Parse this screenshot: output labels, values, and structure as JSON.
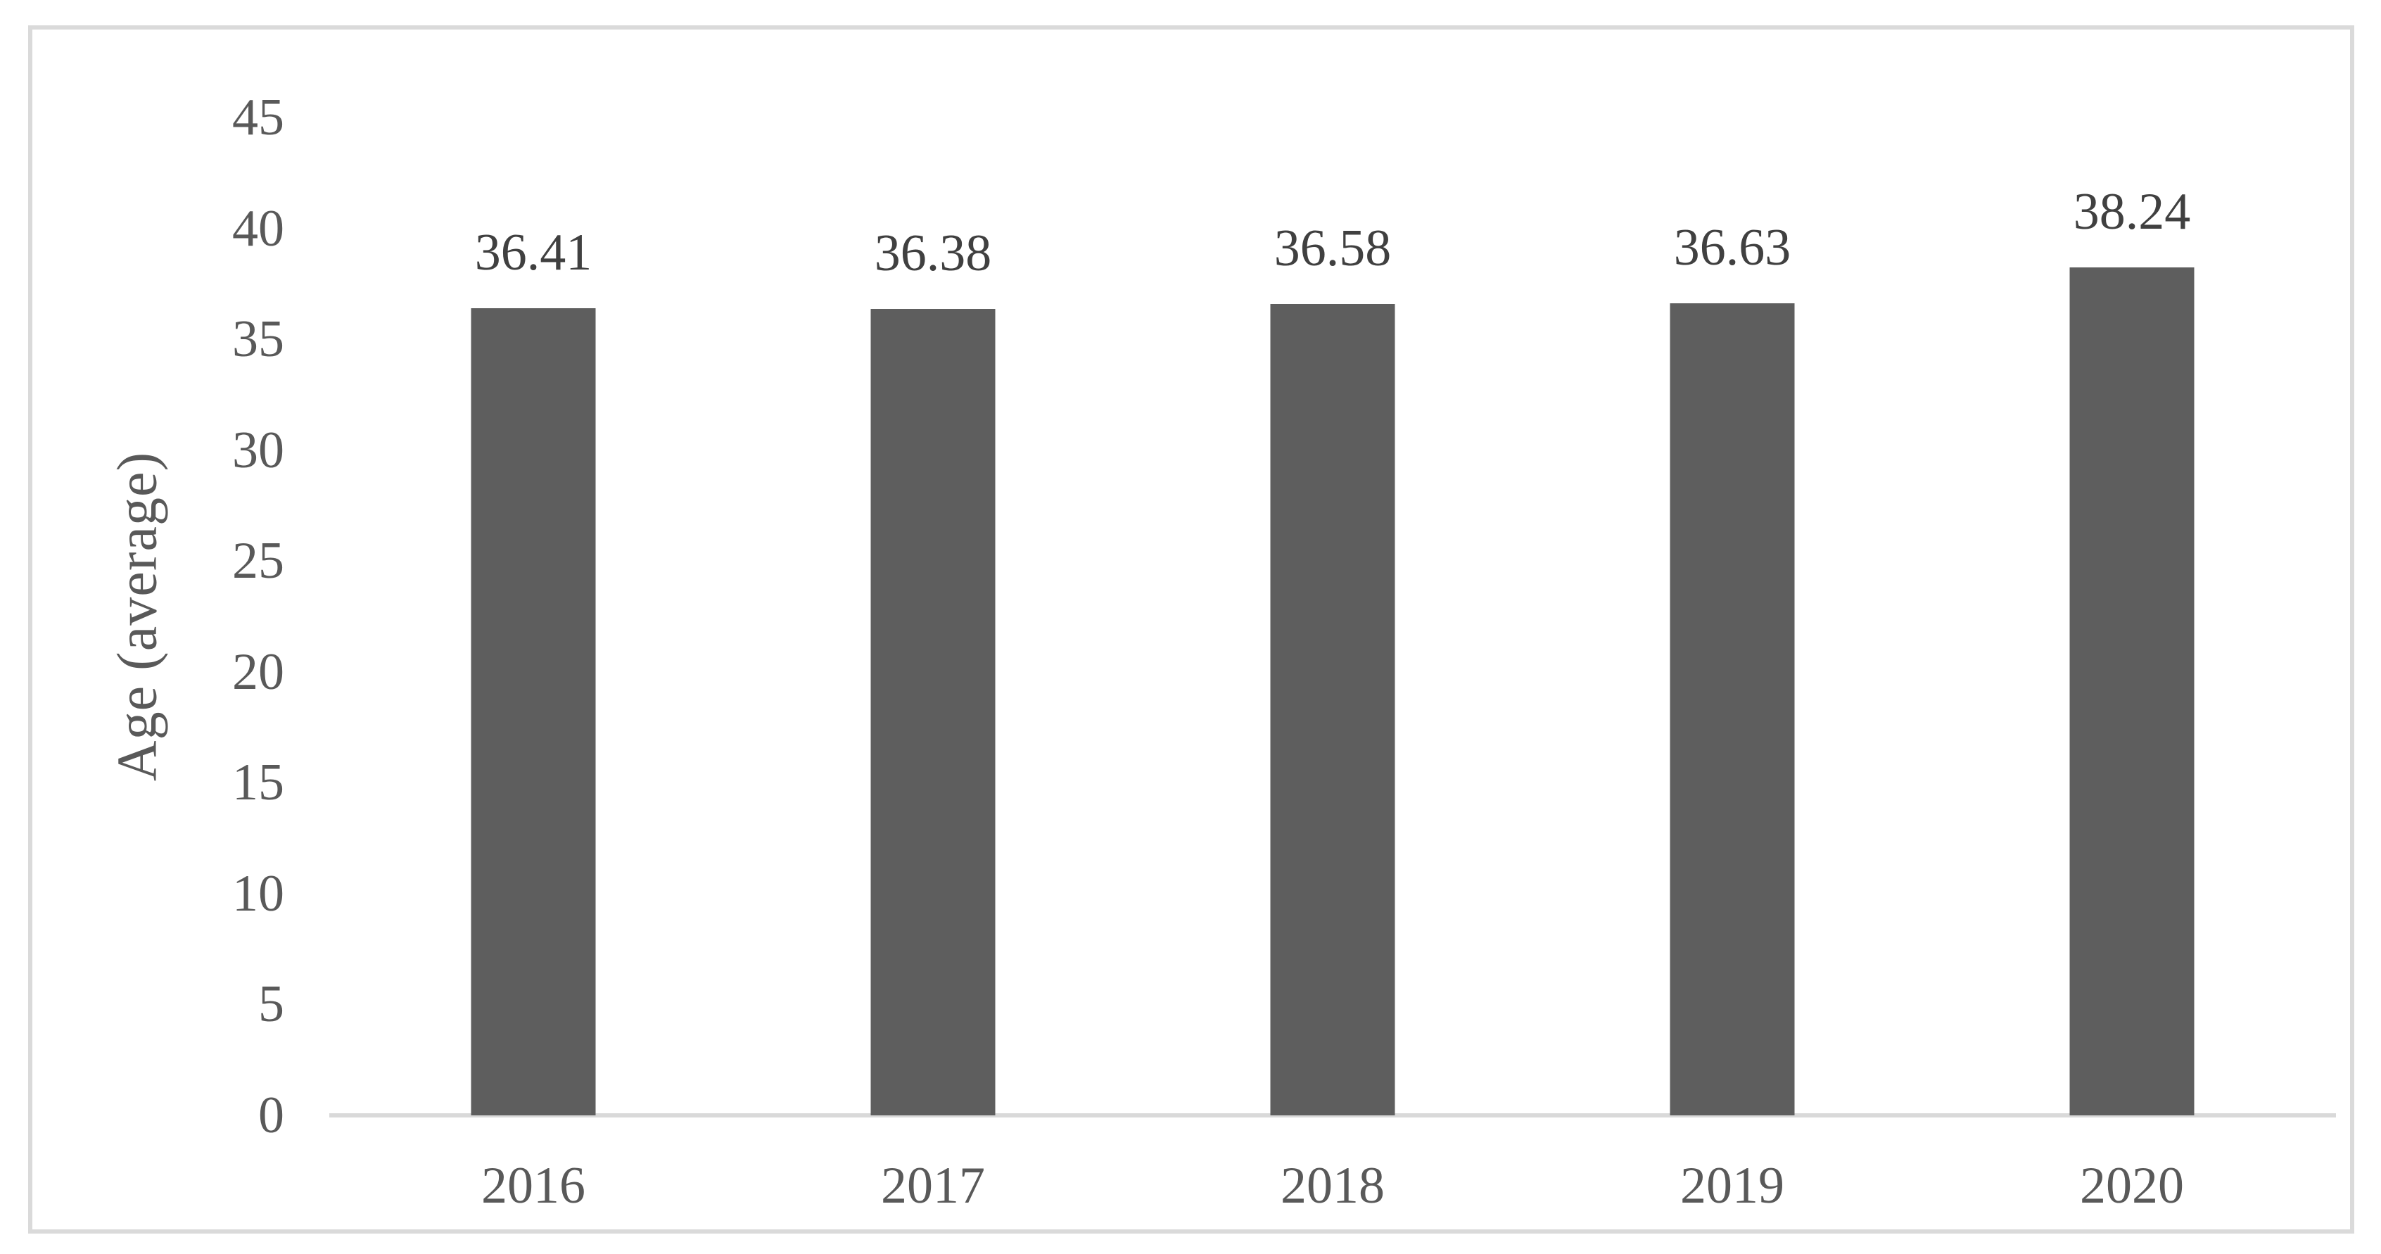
{
  "chart_data": {
    "type": "bar",
    "title": "",
    "xlabel": "",
    "ylabel": "Age (average)",
    "categories": [
      "2016",
      "2017",
      "2018",
      "2019",
      "2020"
    ],
    "values": [
      36.41,
      36.38,
      36.58,
      36.63,
      38.24
    ],
    "data_labels": [
      "36.41",
      "36.38",
      "36.58",
      "36.63",
      "38.24"
    ],
    "ylim": [
      0,
      45
    ],
    "yticks": [
      0,
      5,
      10,
      15,
      20,
      25,
      30,
      35,
      40,
      45
    ],
    "grid": false,
    "legend": false,
    "bar_color": "#5E5E5E",
    "axis_line_color": "#D9D9D9",
    "frame_border_color": "#DADADA",
    "tick_label_color": "#595959",
    "data_label_color": "#404040",
    "background_color": "#FFFFFF"
  }
}
